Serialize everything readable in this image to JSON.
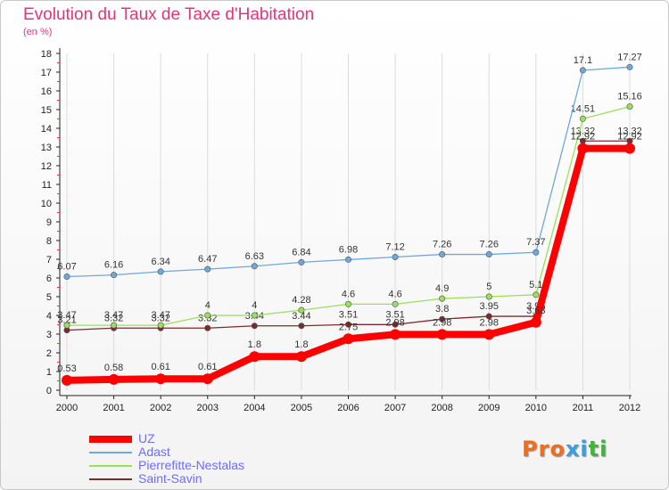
{
  "title": "Evolution du Taux de Taxe d'Habitation",
  "subtitle": "(en %)",
  "logo": {
    "text": "Proxiti",
    "colors": [
      "#ef6d1c",
      "#ef6d1c",
      "#ef6d1c",
      "#3a9ee0",
      "#3a9ee0",
      "#3fb53a",
      "#3fb53a"
    ]
  },
  "chart_data": {
    "type": "line",
    "title": "Evolution du Taux de Taxe d'Habitation",
    "ylabel": "(en %)",
    "xlabel": "",
    "x": [
      "2000",
      "2001",
      "2002",
      "2003",
      "2004",
      "2005",
      "2006",
      "2007",
      "2008",
      "2009",
      "2010",
      "2011",
      "2012"
    ],
    "ylim": [
      0,
      18
    ],
    "yticks": [
      "0",
      "1",
      "2",
      "3",
      "4",
      "5",
      "6",
      "7",
      "8",
      "9",
      "10",
      "11",
      "12",
      "13",
      "14",
      "15",
      "16",
      "17",
      "18"
    ],
    "grid": "vertical",
    "legend_position": "bottom-left",
    "series": [
      {
        "name": "UZ",
        "color": "#ff0000",
        "values": [
          0.53,
          0.58,
          0.61,
          0.61,
          1.8,
          1.8,
          2.75,
          2.98,
          2.98,
          2.98,
          3.63,
          12.92,
          12.92
        ],
        "labels": [
          "0.53",
          "0.58",
          "0.61",
          "0.61",
          "1.8",
          "1.8",
          "2.75",
          "2.98",
          "2.98",
          "2.98",
          "3.63",
          "12.92",
          "12.92"
        ]
      },
      {
        "name": "Adast",
        "color": "#6fa8dc",
        "values": [
          6.07,
          6.16,
          6.34,
          6.47,
          6.63,
          6.84,
          6.98,
          7.12,
          7.26,
          7.26,
          7.37,
          17.1,
          17.27
        ],
        "labels": [
          "6.07",
          "6.16",
          "6.34",
          "6.47",
          "6.63",
          "6.84",
          "6.98",
          "7.12",
          "7.26",
          "7.26",
          "7.37",
          "17.1",
          "17.27"
        ]
      },
      {
        "name": "Pierrefitte-Nestalas",
        "color": "#99e05c",
        "values": [
          3.47,
          3.47,
          3.47,
          4,
          4,
          4.28,
          4.6,
          4.6,
          4.9,
          5,
          5.1,
          14.51,
          15.16
        ],
        "labels": [
          "3.47",
          "3.47",
          "3.47",
          "4",
          "4",
          "4.28",
          "4.6",
          "4.6",
          "4.9",
          "5",
          "5.1",
          "14.51",
          "15.16"
        ]
      },
      {
        "name": "Saint-Savin",
        "color": "#7f2a2a",
        "values": [
          3.21,
          3.32,
          3.32,
          3.32,
          3.44,
          3.44,
          3.51,
          3.51,
          3.8,
          3.95,
          3.95,
          13.32,
          13.32
        ],
        "labels": [
          "3.21",
          "3.32",
          "3.32",
          "3.32",
          "3.44",
          "3.44",
          "3.51",
          "3.51",
          "3.8",
          "3.95",
          "3.95",
          "13.32",
          "13.32"
        ]
      }
    ]
  }
}
